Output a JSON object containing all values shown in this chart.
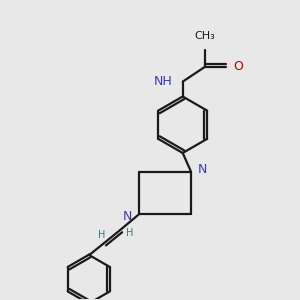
{
  "bg_color": "#e8e8e8",
  "bond_color": "#1a1a1a",
  "N_color": "#3838b0",
  "O_color": "#b00000",
  "H_color": "#3a7878",
  "font_size": 8.5,
  "lw": 1.6,
  "figsize": [
    3.0,
    3.0
  ],
  "dpi": 100,
  "xlim": [
    0,
    10
  ],
  "ylim": [
    0,
    10
  ]
}
